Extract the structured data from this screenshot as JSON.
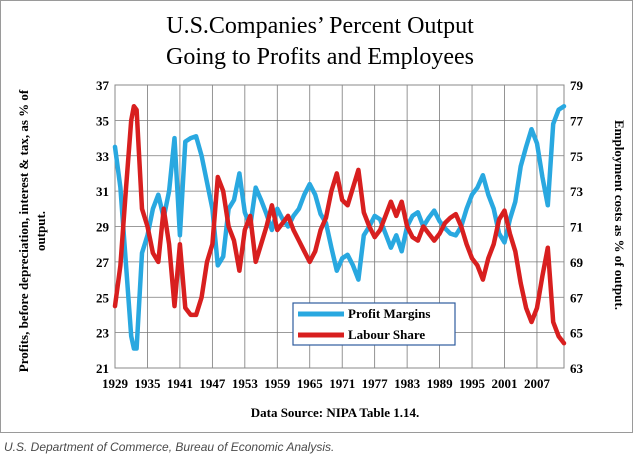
{
  "credit": "U.S. Department of Commerce, Bureau of Economic Analysis.",
  "chart_data": {
    "type": "line",
    "title_line1": "U.S.Companies’ Percent Output",
    "title_line2": "Going to Profits and Employees",
    "ylabel_left_line1": "Profits, before depreciation, interest & tax, as % of",
    "ylabel_left_line2": "output.",
    "ylabel_right": "Employment costs as % of output.",
    "xlabel": "Data Source: NIPA Table 1.14.",
    "xlim": [
      1929,
      2012
    ],
    "ylim_left": [
      21,
      37
    ],
    "ylim_right": [
      63,
      79
    ],
    "y_ticks_left": [
      "21",
      "23",
      "25",
      "27",
      "29",
      "31",
      "33",
      "35",
      "37"
    ],
    "y_ticks_right": [
      "63",
      "65",
      "67",
      "69",
      "71",
      "73",
      "75",
      "77",
      "79"
    ],
    "x_ticks": [
      "1929",
      "1935",
      "1941",
      "1947",
      "1953",
      "1959",
      "1965",
      "1971",
      "1977",
      "1983",
      "1989",
      "1995",
      "2001",
      "2007"
    ],
    "grid": true,
    "legend_position": "bottom-center",
    "series": [
      {
        "name": "Profit Margins",
        "axis": "left",
        "color": "#29a8e0",
        "points": [
          [
            1929,
            33.5
          ],
          [
            1930,
            31.2
          ],
          [
            1931,
            27.0
          ],
          [
            1932,
            22.8
          ],
          [
            1932.5,
            22.1
          ],
          [
            1933,
            22.1
          ],
          [
            1934,
            27.5
          ],
          [
            1935,
            28.5
          ],
          [
            1936,
            30.0
          ],
          [
            1937,
            30.8
          ],
          [
            1938,
            29.5
          ],
          [
            1939,
            31.0
          ],
          [
            1940,
            34.0
          ],
          [
            1941,
            28.5
          ],
          [
            1942,
            33.8
          ],
          [
            1943,
            34.0
          ],
          [
            1944,
            34.1
          ],
          [
            1945,
            33.0
          ],
          [
            1946,
            31.5
          ],
          [
            1947,
            30.0
          ],
          [
            1948,
            26.8
          ],
          [
            1949,
            27.3
          ],
          [
            1950,
            30.0
          ],
          [
            1951,
            30.5
          ],
          [
            1952,
            32.0
          ],
          [
            1953,
            29.8
          ],
          [
            1954,
            29.0
          ],
          [
            1955,
            31.2
          ],
          [
            1956,
            30.5
          ],
          [
            1957,
            29.7
          ],
          [
            1958,
            28.8
          ],
          [
            1959,
            30.0
          ],
          [
            1960,
            29.4
          ],
          [
            1961,
            29.0
          ],
          [
            1962,
            29.6
          ],
          [
            1963,
            30.0
          ],
          [
            1964,
            30.8
          ],
          [
            1965,
            31.4
          ],
          [
            1966,
            30.8
          ],
          [
            1967,
            29.7
          ],
          [
            1968,
            29.2
          ],
          [
            1969,
            27.8
          ],
          [
            1970,
            26.5
          ],
          [
            1971,
            27.2
          ],
          [
            1972,
            27.4
          ],
          [
            1973,
            26.8
          ],
          [
            1974,
            26.0
          ],
          [
            1975,
            28.5
          ],
          [
            1976,
            29.0
          ],
          [
            1977,
            29.6
          ],
          [
            1978,
            29.4
          ],
          [
            1979,
            28.6
          ],
          [
            1980,
            27.8
          ],
          [
            1981,
            28.5
          ],
          [
            1982,
            27.6
          ],
          [
            1983,
            29.0
          ],
          [
            1984,
            29.6
          ],
          [
            1985,
            29.8
          ],
          [
            1986,
            29.0
          ],
          [
            1987,
            29.5
          ],
          [
            1988,
            29.9
          ],
          [
            1989,
            29.3
          ],
          [
            1990,
            28.9
          ],
          [
            1991,
            28.6
          ],
          [
            1992,
            28.5
          ],
          [
            1993,
            29.0
          ],
          [
            1994,
            30.0
          ],
          [
            1995,
            30.8
          ],
          [
            1996,
            31.2
          ],
          [
            1997,
            31.9
          ],
          [
            1998,
            30.8
          ],
          [
            1999,
            30.0
          ],
          [
            2000,
            28.6
          ],
          [
            2001,
            28.1
          ],
          [
            2002,
            29.4
          ],
          [
            2003,
            30.4
          ],
          [
            2004,
            32.4
          ],
          [
            2005,
            33.5
          ],
          [
            2006,
            34.5
          ],
          [
            2007,
            33.7
          ],
          [
            2008,
            31.8
          ],
          [
            2009,
            30.2
          ],
          [
            2010,
            34.8
          ],
          [
            2011,
            35.6
          ],
          [
            2012,
            35.8
          ]
        ]
      },
      {
        "name": "Labour Share",
        "axis": "right",
        "color": "#d81f1f",
        "points": [
          [
            1929,
            66.5
          ],
          [
            1930,
            68.8
          ],
          [
            1931,
            73.0
          ],
          [
            1932,
            77.0
          ],
          [
            1932.5,
            77.8
          ],
          [
            1933,
            77.6
          ],
          [
            1934,
            72.0
          ],
          [
            1935,
            71.0
          ],
          [
            1936,
            69.5
          ],
          [
            1937,
            69.0
          ],
          [
            1938,
            72.0
          ],
          [
            1939,
            70.0
          ],
          [
            1940,
            66.5
          ],
          [
            1941,
            70.0
          ],
          [
            1942,
            66.4
          ],
          [
            1943,
            66.0
          ],
          [
            1944,
            66.0
          ],
          [
            1945,
            67.0
          ],
          [
            1946,
            69.0
          ],
          [
            1947,
            70.0
          ],
          [
            1948,
            73.8
          ],
          [
            1949,
            73.0
          ],
          [
            1950,
            71.0
          ],
          [
            1951,
            70.2
          ],
          [
            1952,
            68.5
          ],
          [
            1953,
            70.8
          ],
          [
            1954,
            71.6
          ],
          [
            1955,
            69.0
          ],
          [
            1956,
            70.0
          ],
          [
            1957,
            71.0
          ],
          [
            1958,
            72.2
          ],
          [
            1959,
            70.8
          ],
          [
            1960,
            71.2
          ],
          [
            1961,
            71.6
          ],
          [
            1962,
            70.8
          ],
          [
            1963,
            70.2
          ],
          [
            1964,
            69.6
          ],
          [
            1965,
            69.0
          ],
          [
            1966,
            69.6
          ],
          [
            1967,
            70.8
          ],
          [
            1968,
            71.5
          ],
          [
            1969,
            73.0
          ],
          [
            1970,
            74.0
          ],
          [
            1971,
            72.5
          ],
          [
            1972,
            72.2
          ],
          [
            1973,
            73.2
          ],
          [
            1974,
            74.2
          ],
          [
            1975,
            71.8
          ],
          [
            1976,
            71.0
          ],
          [
            1977,
            70.4
          ],
          [
            1978,
            70.8
          ],
          [
            1979,
            71.6
          ],
          [
            1980,
            72.4
          ],
          [
            1981,
            71.6
          ],
          [
            1982,
            72.4
          ],
          [
            1983,
            71.0
          ],
          [
            1984,
            70.4
          ],
          [
            1985,
            70.2
          ],
          [
            1986,
            71.0
          ],
          [
            1987,
            70.6
          ],
          [
            1988,
            70.2
          ],
          [
            1989,
            70.6
          ],
          [
            1990,
            71.2
          ],
          [
            1991,
            71.5
          ],
          [
            1992,
            71.7
          ],
          [
            1993,
            71.0
          ],
          [
            1994,
            70.0
          ],
          [
            1995,
            69.2
          ],
          [
            1996,
            68.8
          ],
          [
            1997,
            68.0
          ],
          [
            1998,
            69.2
          ],
          [
            1999,
            70.0
          ],
          [
            2000,
            71.4
          ],
          [
            2001,
            71.9
          ],
          [
            2002,
            70.6
          ],
          [
            2003,
            69.6
          ],
          [
            2004,
            67.8
          ],
          [
            2005,
            66.4
          ],
          [
            2006,
            65.6
          ],
          [
            2007,
            66.4
          ],
          [
            2008,
            68.2
          ],
          [
            2009,
            69.8
          ],
          [
            2010,
            65.6
          ],
          [
            2011,
            64.8
          ],
          [
            2012,
            64.4
          ]
        ]
      }
    ]
  }
}
